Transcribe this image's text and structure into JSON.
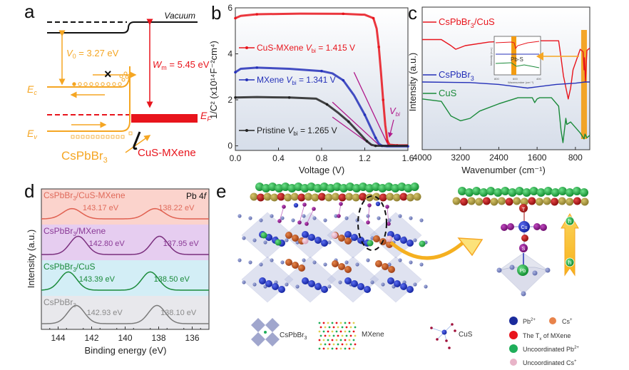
{
  "figure": {
    "panels": {
      "a": {
        "letter": "a",
        "vacuum_label": "Vacuum",
        "v0_label": "V",
        "v0_sub": "0",
        "v0_value": " = 3.27 eV",
        "wm_label": "W",
        "wm_sub": "m",
        "wm_value": " = 5.45 eV",
        "ec_label": "E",
        "ec_sub": "c",
        "ev_label": "E",
        "ev_sub": "v",
        "ef_label": "E",
        "ef_sub": "F",
        "left_material": "CsPbBr",
        "left_material_sub": "3",
        "right_material": "CuS-MXene",
        "blocked_mark": "×",
        "colors": {
          "semiconductor": "#f5a623",
          "metal": "#e8141c",
          "vacuum": "#111111"
        }
      },
      "b": {
        "letter": "b",
        "vbi_annotation": "V",
        "vbi_annotation_sub": "bi"
      },
      "c": {
        "letter": "c",
        "inset_label": "Pb-S"
      },
      "d": {
        "letter": "d",
        "corner_label": "Pb 4",
        "corner_label_italic": "f"
      },
      "e": {
        "letter": "e",
        "legend_structures": [
          {
            "label": "CsPbBr",
            "sub": "3"
          },
          {
            "label": "MXene",
            "sub": ""
          },
          {
            "label": "CuS",
            "sub": ""
          }
        ],
        "legend_atoms": [
          {
            "label": "Pb",
            "sup": "2+",
            "color": "#1a2b9c"
          },
          {
            "label": "Cs",
            "sup": "+",
            "color": "#e8834a"
          },
          {
            "label": "The T",
            "sub": "x",
            "suffix": " of MXene",
            "color": "#e8141c"
          },
          {
            "label": "Uncoordinated Pb",
            "sup": "2+",
            "color": "#1fae5a"
          },
          {
            "label": "Uncoordinated Cs",
            "sup": "+",
            "color": "#e8b4c8"
          }
        ],
        "cu_label": "Cu",
        "s_label": "S",
        "pb_label": "Pb",
        "tx_label": "T",
        "hole_label": "h"
      }
    }
  },
  "chart_data": [
    {
      "id": "b",
      "type": "line",
      "title": "",
      "xlabel": "Voltage (V)",
      "ylabel": "1/C² (x10¹⁴F⁻²cm⁴)",
      "xlim": [
        0.0,
        1.6
      ],
      "ylim": [
        -0.2,
        6
      ],
      "xticks": [
        "0.0",
        "0.4",
        "0.8",
        "1.2",
        "1.6"
      ],
      "xtick_values": [
        0.0,
        0.4,
        0.8,
        1.2,
        1.6
      ],
      "yticks": [
        "0",
        "2",
        "4",
        "6"
      ],
      "ytick_values": [
        0,
        2,
        4,
        6
      ],
      "grid": false,
      "legend_placement": "left",
      "series": [
        {
          "name": "CuS-MXene",
          "legend": "CuS-MXene ",
          "vbi_text": "V",
          "vbi_sub": "bi",
          "vbi_value": " = 1.415 V",
          "color": "#e8141c",
          "x": [
            0.0,
            0.05,
            0.2,
            0.6,
            1.0,
            1.2,
            1.28,
            1.31,
            1.33,
            1.35,
            1.37,
            1.39,
            1.41,
            1.43,
            1.5,
            1.6
          ],
          "y": [
            5.55,
            5.65,
            5.72,
            5.75,
            5.74,
            5.7,
            5.55,
            5.1,
            4.3,
            3.2,
            2.0,
            0.9,
            0.2,
            0.05,
            0.02,
            0.02
          ]
        },
        {
          "name": "MXene",
          "legend": "MXene ",
          "vbi_text": "V",
          "vbi_sub": "bi",
          "vbi_value": " = 1.341 V",
          "color": "#2430b8",
          "x": [
            0.0,
            0.05,
            0.2,
            0.5,
            0.8,
            0.9,
            1.0,
            1.1,
            1.2,
            1.26,
            1.3,
            1.33,
            1.36,
            1.4,
            1.6
          ],
          "y": [
            3.2,
            3.35,
            3.4,
            3.35,
            3.25,
            3.15,
            2.85,
            2.2,
            1.35,
            0.75,
            0.35,
            0.1,
            0.0,
            -0.02,
            -0.02
          ]
        },
        {
          "name": "Pristine",
          "legend": "Pristine ",
          "vbi_text": "V",
          "vbi_sub": "bi",
          "vbi_value": " = 1.265 V",
          "color": "#222222",
          "x": [
            0.0,
            0.2,
            0.5,
            0.75,
            0.85,
            0.95,
            1.05,
            1.15,
            1.22,
            1.26,
            1.3,
            1.6
          ],
          "y": [
            2.1,
            2.12,
            2.1,
            2.05,
            1.8,
            1.45,
            1.05,
            0.55,
            0.2,
            0.05,
            0.0,
            0.0
          ]
        }
      ],
      "fit_lines": [
        {
          "x": [
            1.1,
            1.42
          ],
          "y": [
            3.2,
            0.0
          ],
          "color": "#b0188a"
        },
        {
          "x": [
            0.9,
            1.34
          ],
          "y": [
            1.9,
            0.0
          ],
          "color": "#b0188a"
        },
        {
          "x": [
            0.9,
            1.27
          ],
          "y": [
            1.25,
            0.0
          ],
          "color": "#b0188a"
        }
      ]
    },
    {
      "id": "c",
      "type": "line",
      "title": "",
      "xlabel": "Wavenumber (cm⁻¹)",
      "ylabel": "Intensity (a.u.)",
      "xlim": [
        4000,
        500
      ],
      "xticks": [
        "4000",
        "3200",
        "2400",
        "1600",
        "800"
      ],
      "xtick_values": [
        4000,
        3200,
        2400,
        1600,
        800
      ],
      "grid": false,
      "highlight_band": {
        "from": 680,
        "to": 560,
        "color": "#f39c12"
      },
      "series": [
        {
          "name": "CsPbBr3/CuS",
          "legend": "CsPbBr",
          "legend_sub": "3",
          "legend_suffix": "/CuS",
          "color": "#e8141c",
          "x": [
            4000,
            3600,
            3400,
            3300,
            3100,
            2600,
            2000,
            1650,
            1600,
            1550,
            1150,
            1100,
            1050,
            950,
            900,
            850,
            700,
            640,
            620,
            610,
            590,
            560,
            500
          ],
          "y": [
            0.85,
            0.85,
            0.8,
            0.77,
            0.8,
            0.83,
            0.84,
            0.83,
            0.8,
            0.84,
            0.84,
            0.7,
            0.55,
            0.36,
            0.45,
            0.6,
            0.77,
            0.75,
            0.6,
            0.7,
            0.5,
            0.76,
            0.78
          ]
        },
        {
          "name": "CsPbBr3",
          "legend": "CsPbBr",
          "legend_sub": "3",
          "legend_suffix": "",
          "color": "#2430b8",
          "x": [
            4000,
            3000,
            2400,
            2000,
            1800,
            1600,
            1200,
            800,
            600,
            500
          ],
          "y": [
            0.5,
            0.495,
            0.48,
            0.46,
            0.45,
            0.46,
            0.48,
            0.49,
            0.5,
            0.5
          ]
        },
        {
          "name": "CuS",
          "legend": "CuS",
          "legend_sub": "",
          "legend_suffix": "",
          "color": "#1a8a3a",
          "x": [
            4000,
            3600,
            3400,
            3200,
            3000,
            2800,
            2400,
            2000,
            1700,
            1650,
            1600,
            1550,
            1300,
            1150,
            1100,
            1060,
            1000,
            980,
            900,
            700,
            620,
            600,
            560,
            500
          ],
          "y": [
            0.36,
            0.34,
            0.22,
            0.18,
            0.2,
            0.26,
            0.32,
            0.37,
            0.37,
            0.33,
            0.36,
            0.37,
            0.37,
            0.3,
            0.1,
            0.0,
            0.2,
            0.15,
            0.17,
            0.08,
            0.03,
            0.07,
            0.04,
            0.06
          ]
        }
      ],
      "inset": {
        "xticks": [
          "800",
          "600",
          "400"
        ],
        "xlabel": "Wavenumber (cm⁻¹)",
        "ylabel": "Intensity (a.u.)",
        "annotation": "Pb-S"
      }
    },
    {
      "id": "d",
      "type": "line",
      "title": "",
      "xlabel": "Binding energy (eV)",
      "ylabel": "Intensity (a.u.)",
      "xlim": [
        145,
        135
      ],
      "xticks": [
        "144",
        "142",
        "140",
        "138",
        "136"
      ],
      "xtick_values": [
        144,
        142,
        140,
        138,
        136
      ],
      "grid": false,
      "series": [
        {
          "name": "CsPbBr3/CuS-MXene",
          "label": "CsPbBr",
          "label_sub": "3",
          "label_suffix": "/CuS-MXene",
          "peaks": [
            143.17,
            138.22
          ],
          "peak_labels": [
            "143.17 eV",
            "138.22 eV"
          ],
          "amplitude": 0.45,
          "width": 0.55,
          "color": "#e06050",
          "band_color": "#fbd3cc",
          "label_color": "#e06a5a"
        },
        {
          "name": "CsPbBr3/MXene",
          "label": "CsPbBr",
          "label_sub": "3",
          "label_suffix": "/MXene",
          "peaks": [
            142.8,
            137.95
          ],
          "peak_labels": [
            "142.80 eV",
            "137.95 eV"
          ],
          "amplitude": 0.8,
          "width": 0.5,
          "color": "#7a2f7e",
          "band_color": "#e6cdf0",
          "label_color": "#8a3a96"
        },
        {
          "name": "CsPbBr3/CuS",
          "label": "CsPbBr",
          "label_sub": "3",
          "label_suffix": "/CuS",
          "peaks": [
            143.39,
            138.5
          ],
          "peak_labels": [
            "143.39 eV",
            "138.50 eV"
          ],
          "amplitude": 0.8,
          "width": 0.5,
          "color": "#1a8a3a",
          "band_color": "#d3eef6",
          "label_color": "#1a8a3a"
        },
        {
          "name": "CsPbBr3",
          "label": "CsPbBr",
          "label_sub": "3",
          "label_suffix": "",
          "peaks": [
            142.93,
            138.1
          ],
          "peak_labels": [
            "142.93 eV",
            "138.10 eV"
          ],
          "amplitude": 0.8,
          "width": 0.5,
          "color": "#7a7a7a",
          "band_color": "#e8e8ec",
          "label_color": "#8a8a8a"
        }
      ]
    }
  ]
}
